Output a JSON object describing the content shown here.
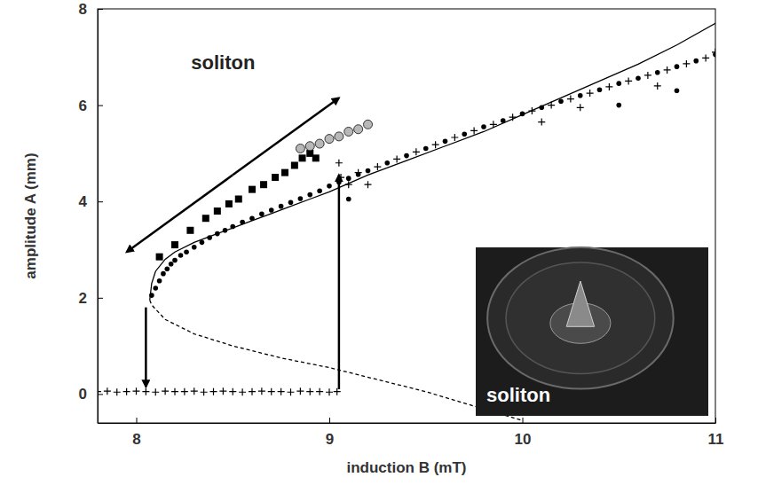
{
  "chart_data": {
    "type": "scatter",
    "xlabel": "induction B (mT)",
    "ylabel": "amplitude A (mm)",
    "xlim": [
      7.8,
      11.0
    ],
    "ylim": [
      -0.6,
      8.0
    ],
    "xticks": [
      8,
      9,
      10,
      11
    ],
    "yticks": [
      0,
      2,
      4,
      6,
      8
    ],
    "grid": false,
    "series": [
      {
        "type": "scatter",
        "marker": "circle",
        "color": "#000000",
        "x": [
          8.08,
          8.1,
          8.12,
          8.14,
          8.16,
          8.18,
          8.2,
          8.23,
          8.26,
          8.3,
          8.34,
          8.38,
          8.42,
          8.46,
          8.5,
          8.55,
          8.6,
          8.65,
          8.7,
          8.75,
          8.8,
          8.85,
          8.9,
          8.95,
          9.0,
          9.05,
          9.1,
          9.1,
          9.15,
          9.2,
          9.3,
          9.4,
          9.5,
          9.6,
          9.7,
          9.8,
          9.9,
          10.0,
          10.1,
          10.2,
          10.3,
          10.4,
          10.5,
          10.5,
          10.6,
          10.7,
          10.8,
          10.8,
          10.9,
          11.0
        ],
        "values": [
          2.05,
          2.2,
          2.35,
          2.5,
          2.6,
          2.7,
          2.78,
          2.88,
          2.95,
          3.05,
          3.15,
          3.25,
          3.33,
          3.4,
          3.48,
          3.57,
          3.65,
          3.74,
          3.82,
          3.9,
          3.98,
          4.06,
          4.14,
          4.22,
          4.32,
          4.4,
          4.05,
          4.48,
          4.56,
          4.64,
          4.8,
          4.95,
          5.1,
          5.25,
          5.4,
          5.55,
          5.68,
          5.82,
          5.95,
          6.08,
          6.2,
          6.32,
          6.0,
          6.45,
          6.56,
          6.68,
          6.3,
          6.8,
          6.92,
          7.05
        ]
      },
      {
        "type": "scatter",
        "marker": "plus",
        "color": "#000000",
        "x": [
          7.8,
          7.85,
          7.9,
          7.95,
          8.0,
          8.05,
          8.1,
          8.15,
          8.2,
          8.25,
          8.3,
          8.35,
          8.4,
          8.45,
          8.5,
          8.55,
          8.6,
          8.65,
          8.7,
          8.75,
          8.8,
          8.85,
          8.9,
          8.95,
          9.0,
          9.04,
          9.05,
          9.06,
          9.1,
          9.15,
          9.2,
          9.25,
          9.35,
          9.45,
          9.55,
          9.65,
          9.75,
          9.85,
          9.95,
          10.05,
          10.1,
          10.15,
          10.25,
          10.3,
          10.35,
          10.45,
          10.55,
          10.65,
          10.7,
          10.75,
          10.85,
          10.95,
          11.0
        ],
        "values": [
          0.05,
          0.06,
          0.04,
          0.05,
          0.06,
          0.05,
          0.04,
          0.06,
          0.05,
          0.05,
          0.06,
          0.04,
          0.05,
          0.06,
          0.05,
          0.04,
          0.05,
          0.06,
          0.05,
          0.05,
          0.04,
          0.06,
          0.05,
          0.05,
          0.04,
          0.05,
          4.8,
          4.5,
          4.35,
          4.6,
          4.35,
          4.72,
          4.88,
          5.03,
          5.18,
          5.33,
          5.47,
          5.6,
          5.75,
          5.88,
          5.65,
          6.0,
          6.13,
          5.95,
          6.25,
          6.38,
          6.5,
          6.62,
          6.4,
          6.73,
          6.86,
          6.98,
          7.1
        ]
      },
      {
        "type": "scatter",
        "marker": "square",
        "color": "#000000",
        "x": [
          8.12,
          8.2,
          8.28,
          8.36,
          8.42,
          8.48,
          8.53,
          8.6,
          8.66,
          8.72,
          8.77,
          8.82,
          8.86,
          8.9,
          8.93
        ],
        "values": [
          2.85,
          3.1,
          3.4,
          3.65,
          3.8,
          3.95,
          4.05,
          4.25,
          4.35,
          4.5,
          4.6,
          4.75,
          4.9,
          5.0,
          4.9
        ]
      },
      {
        "type": "scatter",
        "marker": "circle-open",
        "color": "#333333",
        "x": [
          8.85,
          8.9,
          8.95,
          9.0,
          9.05,
          9.1,
          9.15,
          9.2
        ],
        "values": [
          5.1,
          5.15,
          5.2,
          5.3,
          5.35,
          5.45,
          5.5,
          5.6
        ]
      },
      {
        "type": "line",
        "line_style": "solid",
        "color": "#000000",
        "x": [
          8.07,
          8.08,
          8.1,
          8.15,
          8.2,
          8.3,
          8.4,
          8.5,
          8.6,
          8.7,
          8.8,
          8.9,
          9.0,
          9.2,
          9.4,
          9.6,
          9.8,
          10.0,
          10.2,
          10.4,
          10.6,
          10.8,
          11.0
        ],
        "values": [
          1.95,
          2.3,
          2.55,
          2.8,
          2.95,
          3.15,
          3.3,
          3.45,
          3.6,
          3.75,
          3.9,
          4.05,
          4.2,
          4.55,
          4.85,
          5.15,
          5.45,
          5.8,
          6.15,
          6.5,
          6.85,
          7.25,
          7.7
        ]
      },
      {
        "type": "line",
        "line_style": "dashed",
        "color": "#000000",
        "x": [
          8.07,
          8.08,
          8.15,
          8.3,
          8.5,
          8.75,
          9.0,
          9.25,
          9.5,
          9.75,
          10.0
        ],
        "values": [
          1.95,
          1.85,
          1.55,
          1.25,
          1.0,
          0.75,
          0.55,
          0.3,
          0.05,
          -0.25,
          -0.55
        ]
      }
    ],
    "annotations": [
      {
        "text": "soliton",
        "x": 8.45,
        "y": 6.75
      }
    ],
    "arrows": [
      {
        "x": [
          8.05,
          8.05
        ],
        "y": [
          1.8,
          0.15
        ]
      },
      {
        "x": [
          9.05,
          9.05
        ],
        "y": [
          0.1,
          4.55
        ]
      },
      {
        "x": [
          8.5,
          7.95
        ],
        "y": [
          4.55,
          2.95
        ]
      },
      {
        "x": [
          8.5,
          9.05
        ],
        "y": [
          4.55,
          6.15
        ]
      }
    ],
    "inset_label": "soliton"
  }
}
